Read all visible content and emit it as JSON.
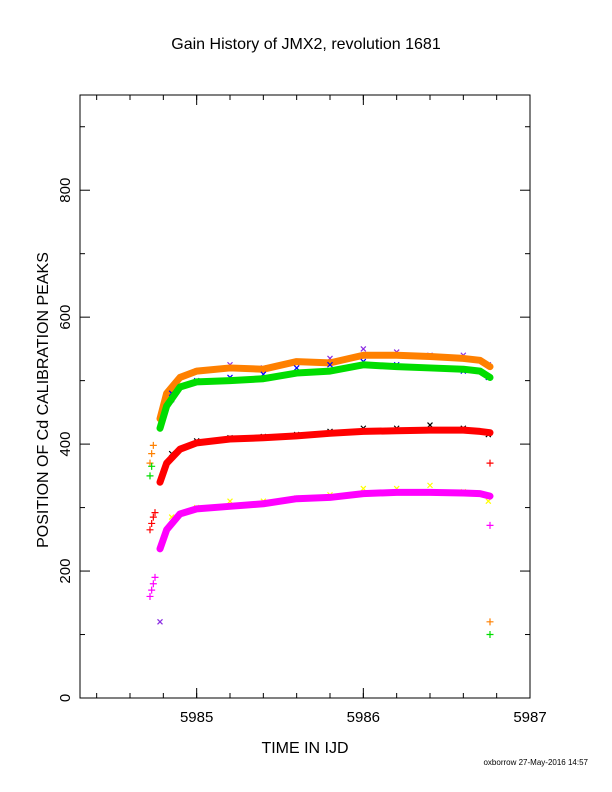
{
  "chart_data": {
    "type": "scatter",
    "title": "Gain History of JMX2, revolution 1681",
    "xlabel": "TIME IN IJD",
    "ylabel": "POSITION OF Cd CALIBRATION PEAKS",
    "xlim": [
      5984.3,
      5987.0
    ],
    "ylim": [
      0,
      950
    ],
    "xticks": [
      5985,
      5986,
      5987
    ],
    "yticks": [
      0,
      200,
      400,
      600,
      800
    ],
    "xtick_labels": [
      "5985",
      "5986",
      "5987"
    ],
    "ytick_labels": [
      "0",
      "200",
      "400",
      "600",
      "800"
    ],
    "grid": false,
    "legend": "none",
    "series": [
      {
        "color": "#8a2be2",
        "marker": "x",
        "x": [
          5984.85,
          5985.0,
          5985.2,
          5985.4,
          5985.6,
          5985.8,
          5986.0,
          5986.2,
          5986.4,
          5986.6,
          5986.75
        ],
        "y": [
          470,
          515,
          525,
          520,
          530,
          535,
          550,
          545,
          540,
          540,
          525
        ]
      },
      {
        "color": "#ff8000",
        "marker": "line",
        "x": [
          5984.78,
          5984.82,
          5984.9,
          5985.0,
          5985.2,
          5985.4,
          5985.6,
          5985.8,
          5986.0,
          5986.2,
          5986.4,
          5986.6,
          5986.7,
          5986.76
        ],
        "y": [
          440,
          480,
          505,
          515,
          520,
          518,
          530,
          528,
          540,
          540,
          538,
          535,
          532,
          522
        ]
      },
      {
        "color": "#0000ff",
        "marker": "x",
        "x": [
          5984.85,
          5985.0,
          5985.2,
          5985.4,
          5985.6,
          5985.8,
          5986.0,
          5986.2,
          5986.4,
          5986.6,
          5986.75
        ],
        "y": [
          480,
          500,
          505,
          510,
          520,
          525,
          530,
          525,
          520,
          515,
          505
        ]
      },
      {
        "color": "#00dd00",
        "marker": "line",
        "x": [
          5984.78,
          5984.82,
          5984.9,
          5985.0,
          5985.2,
          5985.4,
          5985.6,
          5985.8,
          5986.0,
          5986.2,
          5986.4,
          5986.6,
          5986.7,
          5986.76
        ],
        "y": [
          425,
          460,
          490,
          498,
          500,
          503,
          512,
          515,
          525,
          522,
          520,
          518,
          515,
          505
        ]
      },
      {
        "color": "#000000",
        "marker": "x",
        "x": [
          5984.85,
          5985.0,
          5985.2,
          5985.4,
          5985.6,
          5985.8,
          5986.0,
          5986.2,
          5986.4,
          5986.6,
          5986.75
        ],
        "y": [
          385,
          405,
          410,
          412,
          415,
          420,
          425,
          425,
          430,
          425,
          415
        ]
      },
      {
        "color": "#ff0000",
        "marker": "line",
        "x": [
          5984.78,
          5984.82,
          5984.9,
          5985.0,
          5985.2,
          5985.4,
          5985.6,
          5985.8,
          5986.0,
          5986.2,
          5986.4,
          5986.6,
          5986.7,
          5986.76
        ],
        "y": [
          340,
          370,
          392,
          402,
          408,
          410,
          413,
          417,
          420,
          421,
          422,
          422,
          420,
          418
        ]
      },
      {
        "color": "#ffff00",
        "marker": "x",
        "x": [
          5984.85,
          5985.0,
          5985.2,
          5985.4,
          5985.6,
          5985.8,
          5986.0,
          5986.2,
          5986.4,
          5986.6,
          5986.75
        ],
        "y": [
          285,
          300,
          310,
          310,
          315,
          320,
          330,
          330,
          335,
          325,
          310
        ]
      },
      {
        "color": "#ff00ff",
        "marker": "line",
        "x": [
          5984.78,
          5984.82,
          5984.9,
          5985.0,
          5985.2,
          5985.4,
          5985.6,
          5985.8,
          5986.0,
          5986.2,
          5986.4,
          5986.6,
          5986.7,
          5986.76
        ],
        "y": [
          235,
          265,
          290,
          298,
          302,
          306,
          314,
          316,
          322,
          324,
          324,
          323,
          322,
          318
        ]
      },
      {
        "color": "#ff00ff",
        "marker": "+",
        "x": [
          5984.72,
          5984.73,
          5984.74,
          5984.75,
          5986.76
        ],
        "y": [
          160,
          170,
          180,
          190,
          272
        ]
      },
      {
        "color": "#ff0000",
        "marker": "+",
        "x": [
          5984.72,
          5984.73,
          5984.74,
          5984.75,
          5986.76
        ],
        "y": [
          265,
          275,
          285,
          292,
          370
        ]
      },
      {
        "color": "#ff8000",
        "marker": "+",
        "x": [
          5984.72,
          5984.73,
          5984.74,
          5986.76
        ],
        "y": [
          370,
          385,
          398,
          120
        ]
      },
      {
        "color": "#00dd00",
        "marker": "+",
        "x": [
          5984.72,
          5984.73,
          5986.76
        ],
        "y": [
          350,
          365,
          100
        ]
      },
      {
        "color": "#8a2be2",
        "marker": "x",
        "x": [
          5984.78
        ],
        "y": [
          120
        ]
      }
    ]
  },
  "footer": {
    "credit": "oxborrow 27-May-2016 14:57"
  }
}
